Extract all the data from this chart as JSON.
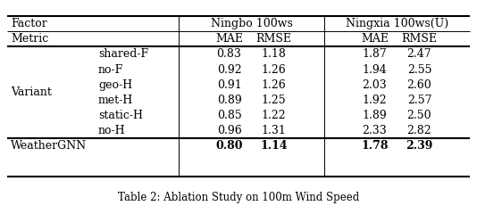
{
  "caption": "Table 2: Ablation Study on 100m Wind Speed",
  "header1": [
    "Factor",
    "Ningbo 100ws",
    "Ningxia 100ws(U)"
  ],
  "header2": [
    "Metric",
    "MAE",
    "RMSE",
    "MAE",
    "RMSE"
  ],
  "row_group_label": "Variant",
  "rows": [
    [
      "shared-F",
      "0.83",
      "1.18",
      "1.87",
      "2.47"
    ],
    [
      "no-F",
      "0.92",
      "1.26",
      "1.94",
      "2.55"
    ],
    [
      "geo-H",
      "0.91",
      "1.26",
      "2.03",
      "2.60"
    ],
    [
      "met-H",
      "0.89",
      "1.25",
      "1.92",
      "2.57"
    ],
    [
      "static-H",
      "0.85",
      "1.22",
      "1.89",
      "2.50"
    ],
    [
      "no-H",
      "0.96",
      "1.31",
      "2.33",
      "2.82"
    ]
  ],
  "last_row": [
    "WeatherGNN",
    "0.80",
    "1.14",
    "1.78",
    "2.39"
  ],
  "bg_color": "#ffffff",
  "line_color": "#000000",
  "font_size": 9.0,
  "caption_font_size": 8.5
}
